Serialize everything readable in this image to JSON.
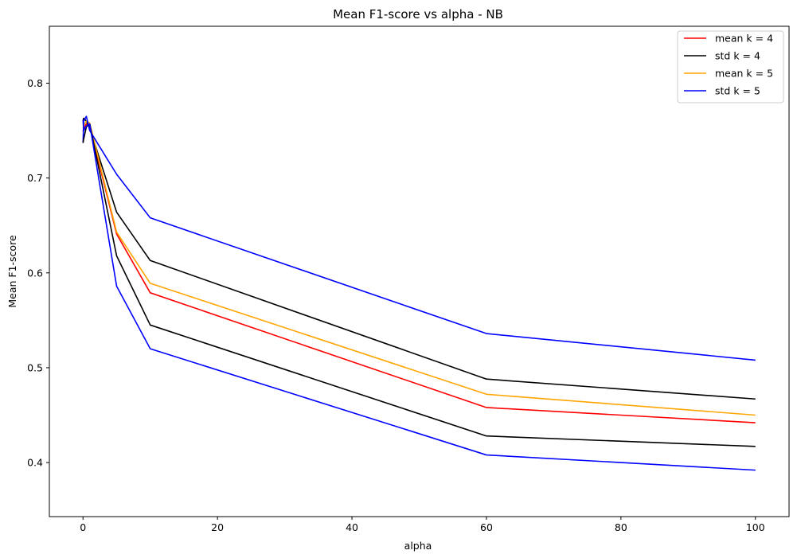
{
  "chart_data": {
    "type": "line",
    "title": "Mean F1-score vs alpha - NB",
    "xlabel": "alpha",
    "ylabel": "Mean F1-score",
    "xlim": [
      -5,
      105
    ],
    "ylim": [
      0.343,
      0.86
    ],
    "xticks": [
      0,
      20,
      40,
      60,
      80,
      100
    ],
    "yticks": [
      0.4,
      0.5,
      0.6,
      0.7,
      0.8
    ],
    "xtick_labels": [
      "0",
      "20",
      "40",
      "60",
      "80",
      "100"
    ],
    "ytick_labels": [
      "0.4",
      "0.5",
      "0.6",
      "0.7",
      "0.8"
    ],
    "grid": false,
    "legend_position": "top-right",
    "x": [
      0.01,
      0.1,
      0.5,
      1,
      5,
      10,
      60,
      100
    ],
    "series": [
      {
        "name": "mean k = 4",
        "color": "#ff0000",
        "values": [
          0.749,
          0.752,
          0.757,
          0.755,
          0.641,
          0.579,
          0.458,
          0.442
        ]
      },
      {
        "name": "std k = 4",
        "color": "#000000",
        "values": [
          0.761,
          0.763,
          0.76,
          0.753,
          0.664,
          0.613,
          0.488,
          0.467
        ]
      },
      {
        "name": "mean k = 5",
        "color": "#ffa500",
        "values": [
          0.752,
          0.755,
          0.76,
          0.758,
          0.643,
          0.589,
          0.472,
          0.45
        ]
      },
      {
        "name": "std k = 5",
        "color": "#0000ff",
        "values": [
          0.737,
          0.76,
          0.765,
          0.75,
          0.704,
          0.658,
          0.536,
          0.508
        ]
      },
      {
        "name": "",
        "color": "#000000",
        "values": [
          0.737,
          0.741,
          0.754,
          0.757,
          0.618,
          0.545,
          0.428,
          0.417
        ]
      },
      {
        "name": "",
        "color": "#0000ff",
        "values": [
          0.761,
          0.75,
          0.755,
          0.757,
          0.586,
          0.52,
          0.408,
          0.392
        ]
      }
    ]
  }
}
